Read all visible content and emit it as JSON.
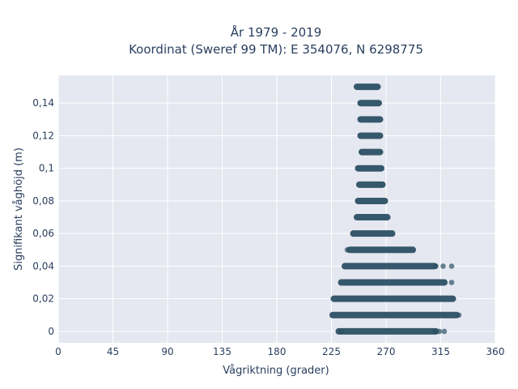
{
  "chart_data": {
    "type": "scatter",
    "title_line1": "År 1979 - 2019",
    "title_line2": "Koordinat (Sweref 99 TM): E 354076, N 6298775",
    "xlabel": "Vågriktning (grader)",
    "ylabel": "Signifikant våghöjd (m)",
    "xlim": [
      0,
      360
    ],
    "ylim": [
      -0.007,
      0.157
    ],
    "x_ticks": [
      0,
      45,
      90,
      135,
      180,
      225,
      270,
      315,
      360
    ],
    "x_tick_labels": [
      "0",
      "45",
      "90",
      "135",
      "180",
      "225",
      "270",
      "315",
      "360"
    ],
    "y_ticks": [
      0,
      0.02,
      0.04,
      0.06,
      0.08,
      0.1,
      0.12,
      0.14
    ],
    "y_tick_labels": [
      "0",
      "0,02",
      "0,04",
      "0,06",
      "0,08",
      "0,1",
      "0,12",
      "0,14"
    ],
    "grid": true,
    "colors": {
      "marker": "#2c5064",
      "plot_bg": "#e5e8f0",
      "grid": "#ffffff",
      "text": "#2a3f5f"
    },
    "series": [
      {
        "bands": [
          {
            "y": 0.15,
            "x_min": 246,
            "x_max": 263
          },
          {
            "y": 0.14,
            "x_min": 249,
            "x_max": 264
          },
          {
            "y": 0.13,
            "x_min": 249,
            "x_max": 265
          },
          {
            "y": 0.12,
            "x_min": 249,
            "x_max": 265
          },
          {
            "y": 0.11,
            "x_min": 250,
            "x_max": 265
          },
          {
            "y": 0.1,
            "x_min": 247,
            "x_max": 266
          },
          {
            "y": 0.09,
            "x_min": 248,
            "x_max": 267
          },
          {
            "y": 0.08,
            "x_min": 247,
            "x_max": 269
          },
          {
            "y": 0.07,
            "x_min": 246,
            "x_max": 271
          },
          {
            "y": 0.06,
            "x_min": 243,
            "x_max": 275
          },
          {
            "y": 0.05,
            "x_min": 240,
            "x_max": 292
          },
          {
            "y": 0.04,
            "x_min": 236,
            "x_max": 310
          },
          {
            "y": 0.03,
            "x_min": 233,
            "x_max": 318
          },
          {
            "y": 0.02,
            "x_min": 227,
            "x_max": 325
          },
          {
            "y": 0.01,
            "x_min": 226,
            "x_max": 328
          },
          {
            "y": 0.0,
            "x_min": 231,
            "x_max": 311
          }
        ],
        "outliers": [
          {
            "x": 238,
            "y": 0.05
          },
          {
            "x": 311,
            "y": 0.04
          },
          {
            "x": 317,
            "y": 0.04
          },
          {
            "x": 324,
            "y": 0.04
          },
          {
            "x": 324,
            "y": 0.03
          },
          {
            "x": 330,
            "y": 0.01
          },
          {
            "x": 233,
            "y": 0.0
          },
          {
            "x": 310,
            "y": 0.0
          },
          {
            "x": 314,
            "y": 0.0
          },
          {
            "x": 318,
            "y": 0.0
          }
        ]
      }
    ]
  }
}
